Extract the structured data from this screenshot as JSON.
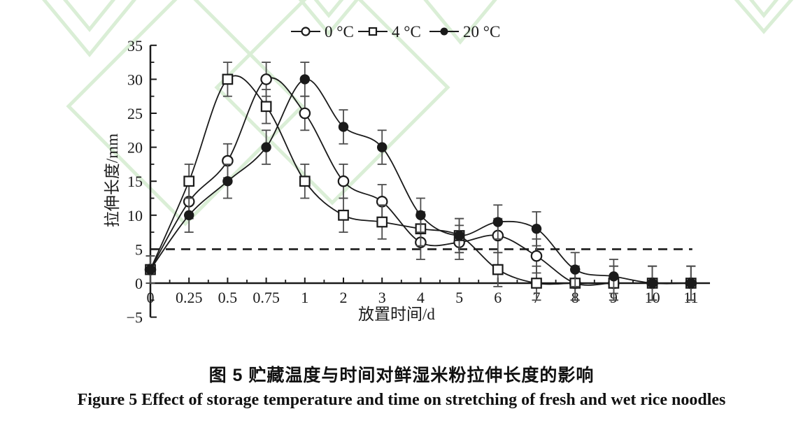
{
  "page": {
    "background": "#ffffff"
  },
  "watermark": {
    "name": "chevron-watermark",
    "color": "#daeed6"
  },
  "chart_data": {
    "type": "line",
    "title": "",
    "xlabel": "放置时间/d",
    "ylabel": "拉伸长度/mm",
    "x_categories": [
      "0",
      "0.25",
      "0.5",
      "0.75",
      "1",
      "2",
      "3",
      "4",
      "5",
      "6",
      "7",
      "8",
      "9",
      "10",
      "11"
    ],
    "ylim": [
      -5,
      35
    ],
    "yticks": [
      -5,
      0,
      5,
      10,
      15,
      20,
      25,
      30,
      35
    ],
    "grid": false,
    "legend_position": "top-center",
    "line_color": "#1a1a1a",
    "error_bar_color": "#4d4d4d",
    "series": [
      {
        "name": "0 °C",
        "marker": "open-circle",
        "values": [
          2,
          12,
          18,
          30,
          25,
          15,
          12,
          6,
          6,
          7,
          4,
          0,
          0,
          0,
          0
        ]
      },
      {
        "name": "4 °C",
        "marker": "open-square",
        "values": [
          2,
          15,
          30,
          26,
          15,
          10,
          9,
          8,
          7,
          2,
          0,
          0,
          0,
          0,
          0
        ]
      },
      {
        "name": "20 °C",
        "marker": "filled-circle",
        "values": [
          2,
          10,
          15,
          20,
          30,
          23,
          20,
          10,
          7,
          9,
          8,
          2,
          1,
          0,
          0
        ]
      }
    ],
    "error_bars": {
      "default": 2.5,
      "at_time_zero": 2
    },
    "reference_line": {
      "y": 5,
      "style": "dashed",
      "color": "#1a1a1a"
    }
  },
  "caption": {
    "zh": "图 5  贮藏温度与时间对鲜湿米粉拉伸长度的影响",
    "en": "Figure 5  Effect of storage temperature and time on stretching of fresh and wet rice noodles"
  }
}
